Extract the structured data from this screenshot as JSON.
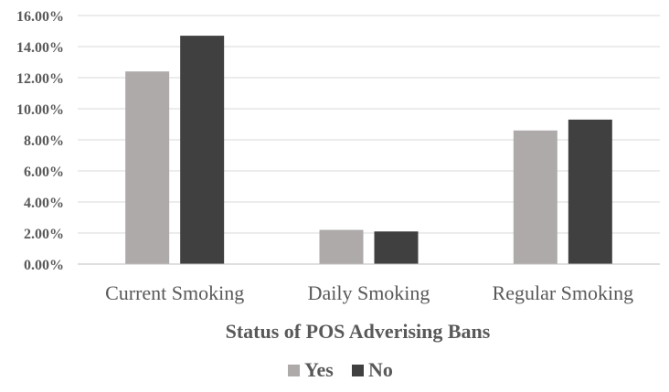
{
  "chart_data": {
    "type": "bar",
    "title": "",
    "xlabel": "Status of POS Adverising Bans",
    "ylabel": "",
    "categories": [
      "Current Smoking",
      "Daily Smoking",
      "Regular Smoking"
    ],
    "series": [
      {
        "name": "Yes",
        "values": [
          12.4,
          2.2,
          8.6
        ],
        "color": "#aeaaaa"
      },
      {
        "name": "No",
        "values": [
          14.7,
          2.1,
          9.3
        ],
        "color": "#404040"
      }
    ],
    "ylim": [
      0,
      16
    ],
    "yticks": [
      "0.00%",
      "2.00%",
      "4.00%",
      "6.00%",
      "8.00%",
      "10.00%",
      "12.00%",
      "14.00%",
      "16.00%"
    ],
    "grid": true,
    "legend_position": "bottom"
  }
}
